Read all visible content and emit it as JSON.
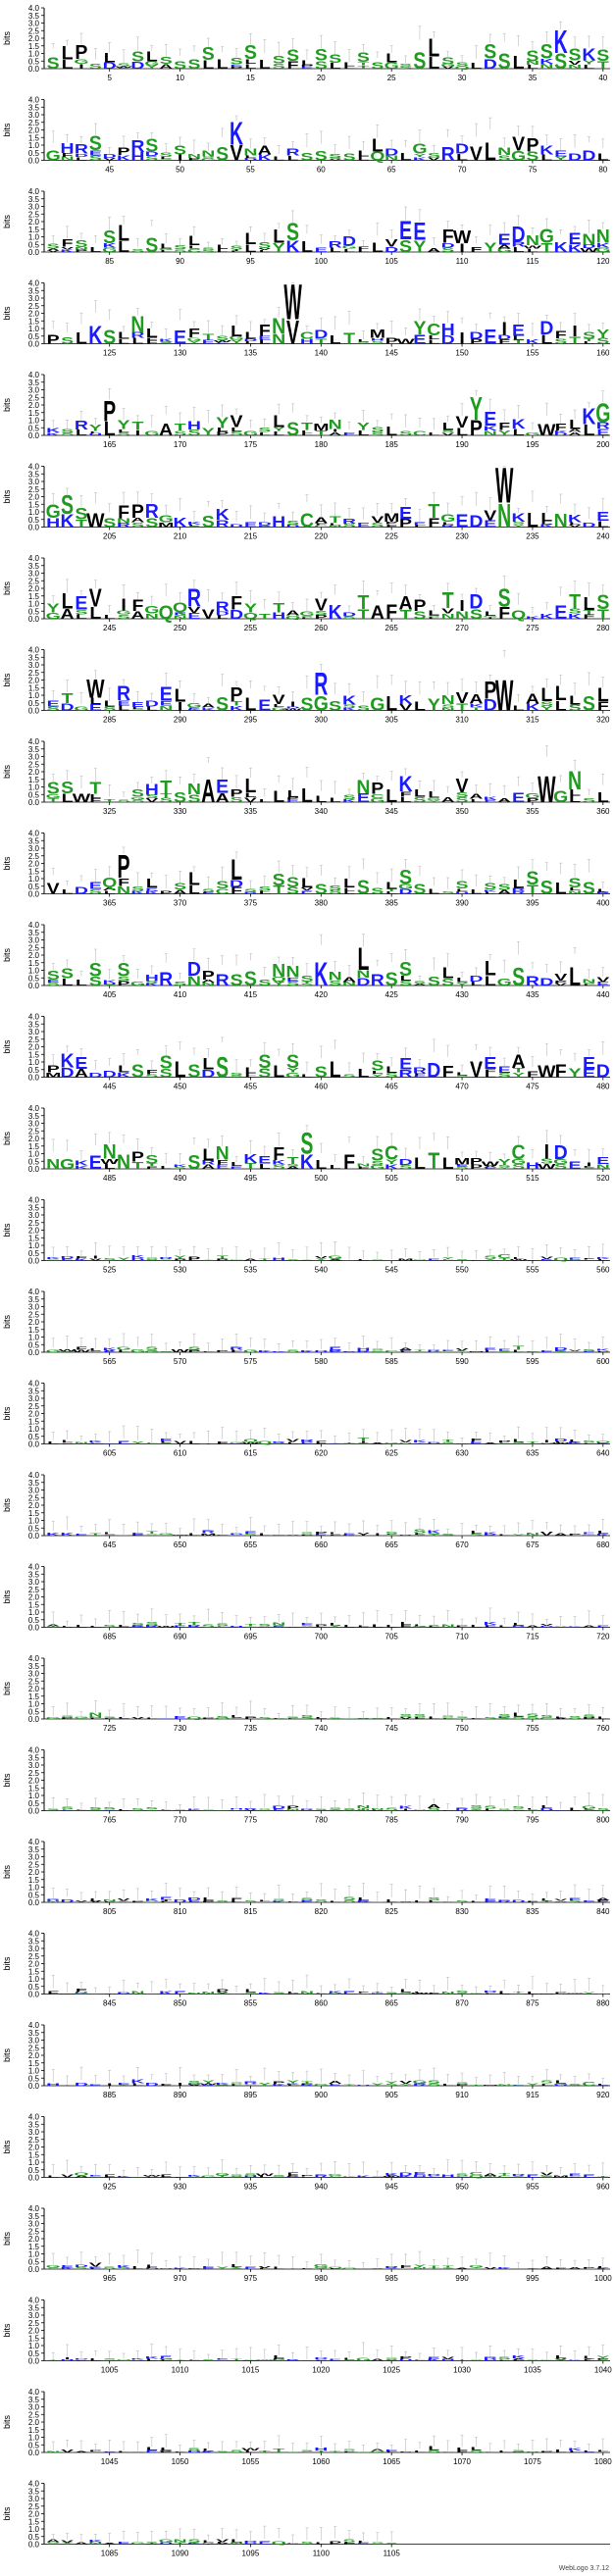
{
  "footer_text": "WebLogo 3.7.12",
  "chart_data": {
    "type": "sequence-logo",
    "ylabel": "bits",
    "ylim": [
      0,
      4.0
    ],
    "yticks": [
      "0.0",
      "0.5",
      "1.0",
      "1.5",
      "2.0",
      "2.5",
      "3.0",
      "3.5",
      "4.0"
    ],
    "positions_per_row": 40,
    "first_position": 1,
    "last_position": 1105,
    "x_tick_interval": 5,
    "rows": 28,
    "colors": {
      "hydrophobic": "#000000",
      "polar": "#1f9b1f",
      "basic": "#1a1aff",
      "acidic": "#1a1aff"
    },
    "notable_stacks": [
      {
        "position": 37,
        "letters": "KS",
        "bits": 2.6
      },
      {
        "position": 138,
        "letters": "WV",
        "bits": 4.0
      },
      {
        "position": 191,
        "letters": "YP",
        "bits": 2.6
      },
      {
        "position": 233,
        "letters": "WN",
        "bits": 4.0
      },
      {
        "position": 251,
        "letters": "REV",
        "bits": 2.0
      },
      {
        "position": 313,
        "letters": "W",
        "bits": 3.5
      },
      {
        "position": 356,
        "letters": "W",
        "bits": 3.0
      }
    ],
    "sequence_hint": "SLPSLSSLSSSSLSSLSSLSSLSSLSSLSSLSSLSSLSKSGHRSDPRSSSNNSKNALRSSSSLLDLGSRDVLNVPKEDDLSFSLSLSSLSLSLSLSLSLERDFLVEEAFWFYEDNGKENNPSLKSLNLKEFTSLLFNSCDLTLMPWYCHIDEIEKDFISYKSRYPYTGATHYYVGSLSTMNEYSLSCLLVQEFKGWFLKGGSSWSFPRGKKSKDEDHSCATREVMEETGEDVSKLLNKDEYLEVLIFGQQRVRFYTTAGVKDTAFAPLTIDLSQKKETLSETGWLREDELGASPLEVISRSKSGLKLYNVAPELALLLSLSSWTTSSHTSNAEPLLLLLLLSNPLKLLAVAKAEGSGNSLVLDEQP",
    "stack_rule": "each position shows letters stacked by information content; stack heights decay toward zero after position 520"
  }
}
